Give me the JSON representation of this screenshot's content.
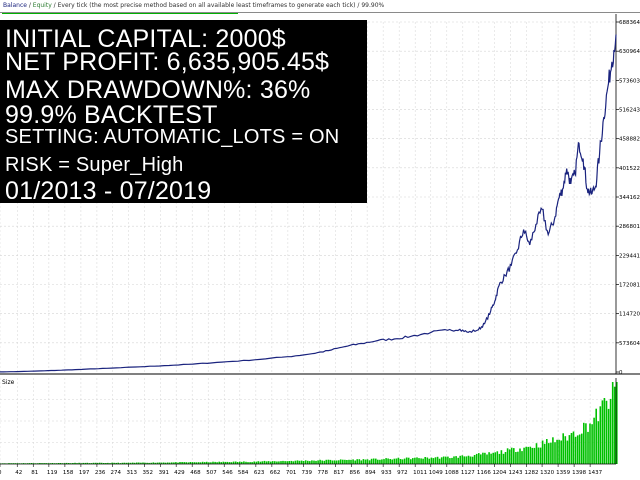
{
  "header": {
    "balance_label": "Balance",
    "equity_label": "Equity",
    "description": "Every tick (the most precise method based on all available least timeframes to generate each tick) / 99.90%"
  },
  "overlay": {
    "line1": "INITIAL CAPITAL: 2000$",
    "line2": "NET PROFIT: 6,635,905.45$",
    "line3": "MAX DRAWDOWN%: 36%",
    "line4": "99.9% BACKTEST",
    "line5": "SETTING: AUTOMATIC_LOTS = ON",
    "line6": "RISK = Super_High",
    "line7": "01/2013 - 07/2019"
  },
  "colors": {
    "balance_line": "#1a237e",
    "size_bars": "#00c000",
    "grid": "#d4d4d4",
    "axis": "#000000",
    "overlay_bg": "#000000",
    "overlay_text": "#ffffff"
  },
  "chart_data": [
    {
      "type": "line",
      "series": [
        {
          "name": "Balance",
          "x": [
            0,
            50,
            100,
            150,
            200,
            260,
            330,
            400,
            470,
            540,
            620,
            700,
            760,
            800,
            840,
            880,
            920,
            960,
            1000,
            1050,
            1090,
            1120,
            1140,
            1165,
            1180,
            1195,
            1205,
            1215,
            1230,
            1245,
            1260,
            1275,
            1290,
            1305,
            1320,
            1335,
            1350,
            1360,
            1370,
            1380,
            1390,
            1400,
            1410,
            1420,
            1430,
            1440,
            1450,
            1460,
            1470,
            1480,
            1490,
            1500
          ],
          "values": [
            2000,
            9000,
            22000,
            35000,
            52000,
            72000,
            98000,
            125000,
            155000,
            195000,
            240000,
            300000,
            360000,
            420000,
            500000,
            560000,
            620000,
            650000,
            700000,
            780000,
            820000,
            840000,
            780000,
            830000,
            950000,
            1200000,
            1400000,
            1700000,
            1900000,
            2100000,
            2400000,
            2800000,
            2500000,
            2900000,
            3200000,
            2700000,
            3000000,
            3400000,
            3600000,
            4000000,
            3700000,
            3900000,
            4500000,
            4200000,
            3600000,
            3500000,
            3650000,
            4300000,
            5000000,
            5600000,
            6100000,
            6635905
          ]
        }
      ],
      "y_ticks": [
        "6883640",
        "6309640",
        "5736036",
        "5162433",
        "4588829",
        "4015225",
        "3441622",
        "2868018",
        "2294414",
        "1720811",
        "1147207",
        "573604",
        "0"
      ],
      "ylim": [
        0,
        6883640
      ],
      "xlim": [
        0,
        1500
      ],
      "grid": true
    },
    {
      "type": "bar",
      "title": "Size",
      "x_ticks": [
        "0",
        "42",
        "81",
        "119",
        "158",
        "197",
        "236",
        "274",
        "313",
        "352",
        "391",
        "429",
        "468",
        "507",
        "546",
        "584",
        "623",
        "662",
        "701",
        "739",
        "778",
        "817",
        "856",
        "894",
        "933",
        "972",
        "1011",
        "1049",
        "1088",
        "1127",
        "1166",
        "1204",
        "1243",
        "1282",
        "1320",
        "1359",
        "1398",
        "1437"
      ],
      "xlim": [
        0,
        1500
      ],
      "trend": [
        {
          "x": 0,
          "value": 0.01
        },
        {
          "x": 300,
          "value": 0.015
        },
        {
          "x": 600,
          "value": 0.03
        },
        {
          "x": 900,
          "value": 0.06
        },
        {
          "x": 1100,
          "value": 0.09
        },
        {
          "x": 1200,
          "value": 0.14
        },
        {
          "x": 1300,
          "value": 0.24
        },
        {
          "x": 1380,
          "value": 0.36
        },
        {
          "x": 1440,
          "value": 0.55
        },
        {
          "x": 1500,
          "value": 1.0
        }
      ],
      "grid": true
    }
  ]
}
